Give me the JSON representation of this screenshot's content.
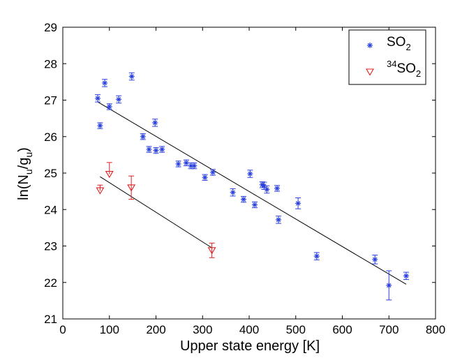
{
  "chart_data": {
    "type": "scatter",
    "xlabel": "Upper state energy [K]",
    "ylabel_parts": {
      "main": "ln(N",
      "sub1": "u",
      "mid": "/g",
      "sub2": "u",
      "close": ")"
    },
    "xlim": [
      0,
      800
    ],
    "ylim": [
      21,
      29
    ],
    "xticks": [
      0,
      100,
      200,
      300,
      400,
      500,
      600,
      700,
      800
    ],
    "yticks": [
      21,
      22,
      23,
      24,
      25,
      26,
      27,
      28,
      29
    ],
    "grid": false,
    "legend_position": "top-right",
    "series": [
      {
        "name": "SO",
        "name_sub": "2",
        "name_sup": "",
        "marker": "asterisk",
        "color": "#2a3fe0",
        "points": [
          {
            "x": 75,
            "y": 27.05,
            "err": 0.1
          },
          {
            "x": 80,
            "y": 26.3,
            "err": 0.08
          },
          {
            "x": 90,
            "y": 27.47,
            "err": 0.1
          },
          {
            "x": 100,
            "y": 26.82,
            "err": 0.08
          },
          {
            "x": 120,
            "y": 27.02,
            "err": 0.1
          },
          {
            "x": 148,
            "y": 27.65,
            "err": 0.1
          },
          {
            "x": 172,
            "y": 26.0,
            "err": 0.08
          },
          {
            "x": 185,
            "y": 25.65,
            "err": 0.08
          },
          {
            "x": 198,
            "y": 26.38,
            "err": 0.1
          },
          {
            "x": 200,
            "y": 25.62,
            "err": 0.08
          },
          {
            "x": 213,
            "y": 25.65,
            "err": 0.08
          },
          {
            "x": 248,
            "y": 25.25,
            "err": 0.08
          },
          {
            "x": 265,
            "y": 25.28,
            "err": 0.08
          },
          {
            "x": 275,
            "y": 25.2,
            "err": 0.08
          },
          {
            "x": 282,
            "y": 25.2,
            "err": 0.08
          },
          {
            "x": 305,
            "y": 24.88,
            "err": 0.08
          },
          {
            "x": 322,
            "y": 25.02,
            "err": 0.08
          },
          {
            "x": 365,
            "y": 24.47,
            "err": 0.1
          },
          {
            "x": 388,
            "y": 24.28,
            "err": 0.08
          },
          {
            "x": 402,
            "y": 24.98,
            "err": 0.1
          },
          {
            "x": 412,
            "y": 24.13,
            "err": 0.08
          },
          {
            "x": 428,
            "y": 24.68,
            "err": 0.08
          },
          {
            "x": 432,
            "y": 24.65,
            "err": 0.1
          },
          {
            "x": 438,
            "y": 24.55,
            "err": 0.1
          },
          {
            "x": 460,
            "y": 24.58,
            "err": 0.08
          },
          {
            "x": 463,
            "y": 23.72,
            "err": 0.1
          },
          {
            "x": 505,
            "y": 24.17,
            "err": 0.15
          },
          {
            "x": 545,
            "y": 22.72,
            "err": 0.1
          },
          {
            "x": 670,
            "y": 22.63,
            "err": 0.12
          },
          {
            "x": 700,
            "y": 21.92,
            "err": 0.4
          },
          {
            "x": 737,
            "y": 22.18,
            "err": 0.1
          }
        ],
        "fit": {
          "x": [
            75,
            737
          ],
          "y": [
            26.95,
            21.95
          ]
        }
      },
      {
        "name": "SO",
        "name_sub": "2",
        "name_sup": "34",
        "marker": "triangle-down",
        "color": "#e02020",
        "points": [
          {
            "x": 80,
            "y": 24.52,
            "err_up": 0.15,
            "err_down": 0.0
          },
          {
            "x": 100,
            "y": 24.97,
            "err_up": 0.32,
            "err_down": 0.0
          },
          {
            "x": 147,
            "y": 24.6,
            "err_up": 0.32,
            "err_down": 0.32
          },
          {
            "x": 320,
            "y": 22.88,
            "err_up": 0.2,
            "err_down": 0.2
          }
        ],
        "fit": {
          "x": [
            80,
            320
          ],
          "y": [
            24.9,
            22.95
          ]
        }
      }
    ]
  }
}
